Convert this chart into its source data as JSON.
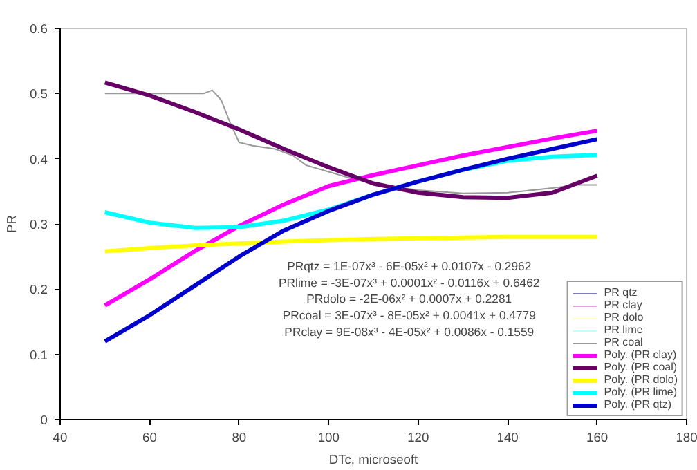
{
  "chart_data": {
    "type": "line",
    "xlabel": "DTc, microseoft",
    "ylabel": "PR",
    "xlim": [
      40,
      180
    ],
    "ylim": [
      0,
      0.6
    ],
    "xticks": [
      40,
      60,
      80,
      100,
      120,
      140,
      160,
      180
    ],
    "yticks": [
      0,
      0.1,
      0.2,
      0.3,
      0.4,
      0.5,
      0.6
    ],
    "grid": false,
    "legend": "bottom right",
    "marker": "none",
    "line_style": "solid",
    "x": [
      50,
      60,
      70,
      80,
      90,
      100,
      110,
      120,
      130,
      140,
      150,
      160
    ],
    "series": [
      {
        "name": "PR qtz",
        "color": "#8080c0",
        "values": [
          null,
          null,
          null,
          null,
          null,
          null,
          null,
          null,
          null,
          null,
          null,
          null
        ]
      },
      {
        "name": "PR clay",
        "color": "#e0a0e0",
        "values": [
          null,
          null,
          null,
          null,
          null,
          null,
          null,
          null,
          null,
          null,
          null,
          null
        ]
      },
      {
        "name": "PR dolo",
        "color": "#ffffc0",
        "values": [
          null,
          null,
          null,
          null,
          null,
          null,
          null,
          null,
          null,
          null,
          null,
          null
        ]
      },
      {
        "name": "PR lime",
        "color": "#c0ffff",
        "values": [
          null,
          null,
          null,
          null,
          null,
          null,
          null,
          null,
          null,
          null,
          null,
          null
        ]
      },
      {
        "name": "PR coal",
        "color": "#999999",
        "x": [
          50,
          60,
          72,
          74,
          76,
          78,
          80,
          83,
          88,
          92,
          95,
          100,
          105,
          110,
          120,
          130,
          140,
          150,
          155,
          160
        ],
        "values": [
          0.5,
          0.5,
          0.5,
          0.505,
          0.49,
          0.455,
          0.425,
          0.42,
          0.415,
          0.405,
          0.39,
          0.38,
          0.37,
          0.362,
          0.352,
          0.347,
          0.348,
          0.355,
          0.36,
          0.36
        ]
      },
      {
        "name": "Poly. (PR clay)",
        "color": "#ff00ff",
        "values": [
          0.175,
          0.215,
          0.258,
          0.297,
          0.33,
          0.358,
          0.375,
          0.39,
          0.405,
          0.418,
          0.431,
          0.443
        ]
      },
      {
        "name": "Poly. (PR coal)",
        "color": "#660066",
        "values": [
          0.517,
          0.497,
          0.472,
          0.445,
          0.415,
          0.387,
          0.362,
          0.348,
          0.341,
          0.34,
          0.348,
          0.374
        ]
      },
      {
        "name": "Poly. (PR dolo)",
        "color": "#ffff00",
        "values": [
          0.258,
          0.263,
          0.267,
          0.27,
          0.273,
          0.275,
          0.277,
          0.278,
          0.279,
          0.28,
          0.28,
          0.28
        ]
      },
      {
        "name": "Poly. (PR lime)",
        "color": "#00ffff",
        "values": [
          0.318,
          0.302,
          0.294,
          0.295,
          0.305,
          0.322,
          0.345,
          0.365,
          0.383,
          0.397,
          0.403,
          0.406
        ]
      },
      {
        "name": "Poly. (PR qtz)",
        "color": "#0000cc",
        "values": [
          0.12,
          0.16,
          0.205,
          0.25,
          0.29,
          0.32,
          0.345,
          0.365,
          0.383,
          0.4,
          0.415,
          0.43
        ]
      }
    ],
    "annotations": [
      "PRqtz = 1E-07x³ - 6E-05x² + 0.0107x - 0.2962",
      "PRlime = -3E-07x³ + 0.0001x² - 0.0116x + 0.6462",
      "PRdolo = -2E-06x² + 0.0007x + 0.2281",
      "PRcoal = 3E-07x³ - 8E-05x² + 0.0041x + 0.4779",
      "PRclay = 9E-08x³ - 4E-05x² + 0.0086x - 0.1559"
    ]
  }
}
